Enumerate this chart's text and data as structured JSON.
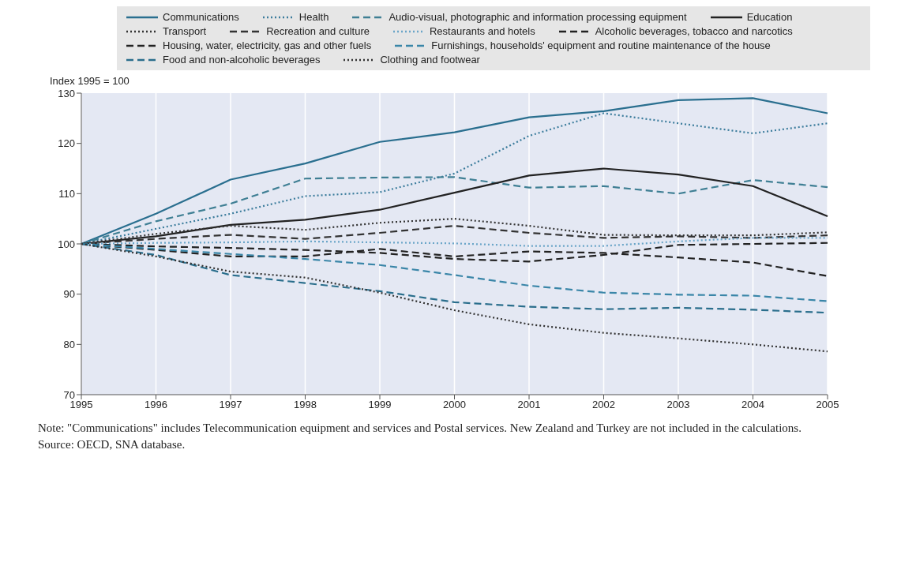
{
  "chart_data": {
    "type": "line",
    "ylabel": "Index 1995 = 100",
    "categories": [
      "1995",
      "1996",
      "1997",
      "1998",
      "1999",
      "2000",
      "2001",
      "2002",
      "2003",
      "2004",
      "2005"
    ],
    "ylim": [
      70,
      130
    ],
    "yticks": [
      70,
      80,
      90,
      100,
      110,
      120,
      130
    ],
    "grid": "x",
    "legend": "top",
    "marker": "none",
    "series": [
      {
        "name": "Communications",
        "color": "#2a6f8f",
        "line_style": "solid",
        "values": [
          100,
          106,
          112.8,
          116,
          120.3,
          122.2,
          125.2,
          126.4,
          128.6,
          129,
          126
        ]
      },
      {
        "name": "Health",
        "color": "#3b7c9c",
        "line_style": "dotted",
        "values": [
          100,
          103,
          106,
          109.5,
          110.3,
          114,
          121.5,
          126,
          124,
          122,
          124
        ]
      },
      {
        "name": "Audio-visual, photographic and information processing equipment",
        "color": "#3f7f94",
        "line_style": "dashed",
        "values": [
          100,
          104.5,
          108,
          113,
          113.2,
          113.3,
          111.2,
          111.5,
          110,
          112.7,
          111.3
        ]
      },
      {
        "name": "Education",
        "color": "#222222",
        "line_style": "solid",
        "values": [
          100,
          101.5,
          103.8,
          104.8,
          106.8,
          110.2,
          113.6,
          115,
          113.8,
          111.5,
          105.5
        ]
      },
      {
        "name": "Transport",
        "color": "#333333",
        "line_style": "dotted",
        "values": [
          100,
          102,
          103.6,
          102.8,
          104.2,
          105,
          103.6,
          101.8,
          101.7,
          101.7,
          102.3
        ]
      },
      {
        "name": "Recreation and culture",
        "color": "#333333",
        "line_style": "dashed",
        "values": [
          100,
          101,
          101.8,
          101,
          102.2,
          103.6,
          102.2,
          101.2,
          101.5,
          101.2,
          101.7
        ]
      },
      {
        "name": "Restaurants and hotels",
        "color": "#6aa5c8",
        "line_style": "dotted",
        "values": [
          100,
          100.2,
          100.3,
          100.5,
          100.3,
          100.1,
          99.6,
          99.6,
          100.5,
          101.2,
          101.2
        ]
      },
      {
        "name": "Alcoholic beverages, tobacco and narcotics",
        "color": "#222222",
        "line_style": "dashed",
        "values": [
          100,
          98.8,
          97.5,
          97.5,
          99,
          97.5,
          98.5,
          98.2,
          97.3,
          96.3,
          93.6
        ]
      },
      {
        "name": "Housing, water, electricity, gas and other fuels",
        "color": "#222222",
        "line_style": "dashed",
        "values": [
          100,
          99.5,
          99.2,
          98.8,
          98.2,
          97,
          96.5,
          97.8,
          99.8,
          100,
          100.2
        ]
      },
      {
        "name": "Furnishings, households' equipment and routine maintenance of the house",
        "color": "#3a86a8",
        "line_style": "dashed",
        "values": [
          100,
          99,
          98,
          97,
          95.8,
          93.8,
          91.7,
          90.3,
          89.9,
          89.7,
          88.6
        ]
      },
      {
        "name": "Food and non-alcoholic beverages",
        "color": "#2a6e8c",
        "line_style": "dashed",
        "values": [
          100,
          97.8,
          93.8,
          92.2,
          90.6,
          88.4,
          87.5,
          87,
          87.3,
          86.9,
          86.3
        ]
      },
      {
        "name": "Clothing and footwear",
        "color": "#333333",
        "line_style": "dotted",
        "values": [
          100,
          97.5,
          94.5,
          93.3,
          90.3,
          86.8,
          84,
          82.3,
          81.2,
          80,
          78.6
        ]
      }
    ],
    "annotations": [
      "Note: \"Communications\" includes Telecommunication equipment and services and Postal services. New Zealand and Turkey are not included in the calculations.",
      "Source: OECD, SNA database."
    ]
  }
}
